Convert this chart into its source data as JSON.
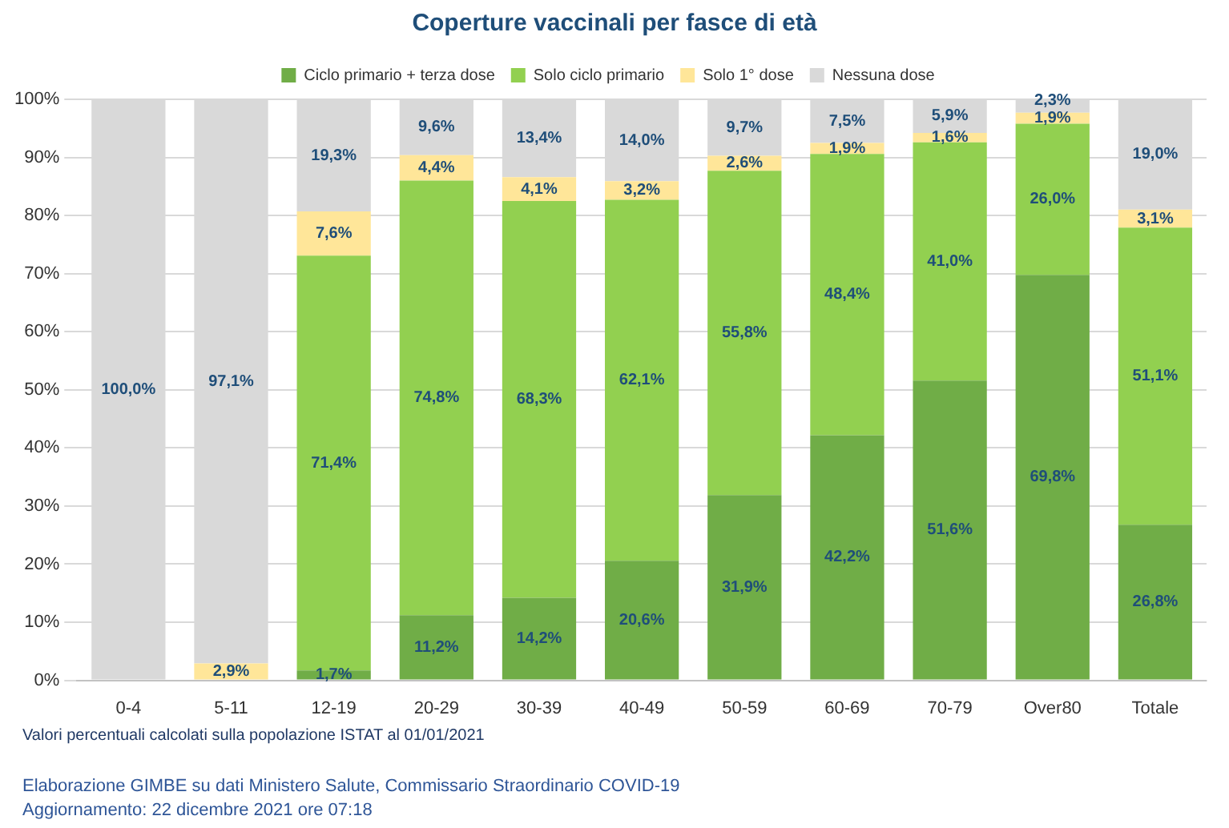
{
  "chart_data": {
    "type": "bar",
    "title": "Coperture vaccinali per fasce di età",
    "stacked": true,
    "legend": "top",
    "grid": "y",
    "data_labels": false,
    "categories": [
      "0-4",
      "5-11",
      "12-19",
      "20-29",
      "30-39",
      "40-49",
      "50-59",
      "60-69",
      "70-79",
      "Over80",
      "Totale"
    ],
    "series": [
      {
        "name": "Ciclo primario + terza dose",
        "color": "#70ad47",
        "values": [
          null,
          null,
          1.7,
          11.2,
          14.2,
          20.6,
          31.9,
          42.2,
          51.6,
          69.8,
          26.8
        ],
        "value_labels": [
          null,
          null,
          "1,7%",
          "11,2%",
          "14,2%",
          "20,6%",
          "31,9%",
          "42,2%",
          "51,6%",
          "69,8%",
          "26,8%"
        ]
      },
      {
        "name": "Solo ciclo primario",
        "color": "#92d050",
        "values": [
          null,
          null,
          71.4,
          74.8,
          68.3,
          62.1,
          55.8,
          48.4,
          41.0,
          26.0,
          51.1
        ],
        "value_labels": [
          null,
          null,
          "71,4%",
          "74,8%",
          "68,3%",
          "62,1%",
          "55,8%",
          "48,4%",
          "41,0%",
          "26,0%",
          "51,1%"
        ]
      },
      {
        "name": "Solo 1° dose",
        "color": "#ffe699",
        "values": [
          null,
          2.9,
          7.6,
          4.4,
          4.1,
          3.2,
          2.6,
          1.9,
          1.6,
          1.9,
          3.1
        ],
        "value_labels": [
          null,
          "2,9%",
          "7,6%",
          "4,4%",
          "4,1%",
          "3,2%",
          "2,6%",
          "1,9%",
          "1,6%",
          "1,9%",
          "3,1%"
        ]
      },
      {
        "name": "Nessuna dose",
        "color": "#d9d9d9",
        "values": [
          100.0,
          97.1,
          19.3,
          9.6,
          13.4,
          14.0,
          9.7,
          7.5,
          5.9,
          2.3,
          19.0
        ],
        "value_labels": [
          "100,0%",
          "97,1%",
          "19,3%",
          "9,6%",
          "13,4%",
          "14,0%",
          "9,7%",
          "7,5%",
          "5,9%",
          "2,3%",
          "19,0%"
        ]
      }
    ],
    "ylim": [
      0,
      100
    ],
    "yticks": [
      {
        "value": 0,
        "label": "0%"
      },
      {
        "value": 10,
        "label": "10%"
      },
      {
        "value": 20,
        "label": "20%"
      },
      {
        "value": 30,
        "label": "30%"
      },
      {
        "value": 40,
        "label": "40%"
      },
      {
        "value": 50,
        "label": "50%"
      },
      {
        "value": 60,
        "label": "60%"
      },
      {
        "value": 70,
        "label": "70%"
      },
      {
        "value": 80,
        "label": "80%"
      },
      {
        "value": 90,
        "label": "90%"
      },
      {
        "value": 100,
        "label": "100%"
      }
    ],
    "annotations": [
      "Valori percentuali calcolati sulla popolazione ISTAT al 01/01/2021",
      "Elaborazione GIMBE su dati Ministero Salute, Commissario Straordinario COVID-19",
      "Aggiornamento: 22 dicembre 2021 ore 07:18"
    ]
  }
}
